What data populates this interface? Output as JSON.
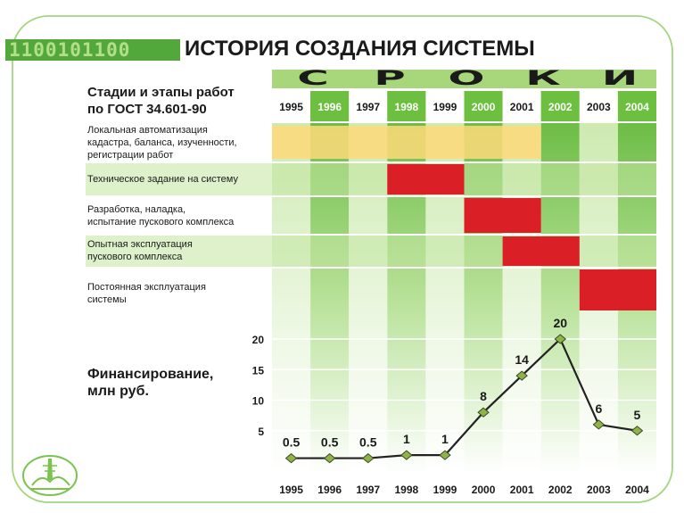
{
  "header": {
    "binary": "1100101100",
    "title": "ИСТОРИЯ СОЗДАНИЯ СИСТЕМЫ",
    "sroki_letters": [
      "С",
      "Р",
      "О",
      "К",
      "И"
    ],
    "stages_header": [
      "Стадии и этапы работ",
      "по ГОСТ 34.601-90"
    ]
  },
  "stages": [
    {
      "lines": [
        "Локальная автоматизация",
        "кадастра, баланса, изученности,",
        "регистрации работ"
      ],
      "start": 1995,
      "end": 2001,
      "color": "#ffd97a"
    },
    {
      "lines": [
        "Техническое задание на систему"
      ],
      "start": 1998,
      "end": 1999,
      "color": "#da1f26"
    },
    {
      "lines": [
        "Разработка, наладка,",
        "испытание пускового комплекса"
      ],
      "start": 2000,
      "end": 2001,
      "color": "#da1f26"
    },
    {
      "lines": [
        "Опытная эксплуатация",
        "пускового комплекса"
      ],
      "start": 2001,
      "end": 2002,
      "color": "#da1f26"
    },
    {
      "lines": [
        "Постоянная эксплуатация",
        "системы"
      ],
      "start": 2003,
      "end": 2004,
      "color": "#da1f26"
    }
  ],
  "financing_label": [
    "Финансирование,",
    "млн руб."
  ],
  "chart_data": {
    "type": "line",
    "x": [
      1995,
      1996,
      1997,
      1998,
      1999,
      2000,
      2001,
      2002,
      2003,
      2004
    ],
    "categories": [
      "1995",
      "1996",
      "1997",
      "1998",
      "1999",
      "2000",
      "2001",
      "2002",
      "2003",
      "2004"
    ],
    "values": [
      0.5,
      0.5,
      0.5,
      1,
      1,
      8,
      14,
      20,
      6,
      5
    ],
    "data_labels": [
      "0.5",
      "0.5",
      "0.5",
      "1",
      "1",
      "8",
      "14",
      "20",
      "6",
      "5"
    ],
    "y_ticks": [
      5,
      10,
      15,
      20
    ],
    "ylim": [
      0,
      22
    ],
    "title": "",
    "xlabel": "",
    "ylabel": "Финансирование, млн руб."
  },
  "colors": {
    "green_dark": "#6dbf3f",
    "green_light": "#c3e5a1",
    "yellow": "#ffd97a",
    "red": "#da1f26",
    "line": "#222222",
    "marker": "#8fb34a"
  }
}
